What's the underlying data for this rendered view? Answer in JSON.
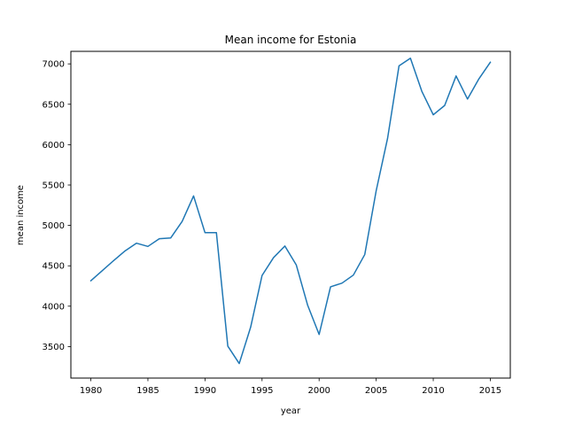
{
  "chart_data": {
    "type": "line",
    "title": "Mean income for Estonia",
    "xlabel": "year",
    "ylabel": "mean income",
    "xlim": [
      1978.25,
      2016.75
    ],
    "ylim": [
      3110,
      7155
    ],
    "xticks": [
      1980,
      1985,
      1990,
      1995,
      2000,
      2005,
      2010,
      2015
    ],
    "xtick_labels": [
      "1980",
      "1985",
      "1990",
      "1995",
      "2000",
      "2005",
      "2010",
      "2015"
    ],
    "yticks": [
      3500,
      4000,
      4500,
      5000,
      5500,
      6000,
      6500,
      7000
    ],
    "ytick_labels": [
      "3500",
      "4000",
      "4500",
      "5000",
      "5500",
      "6000",
      "6500",
      "7000"
    ],
    "grid": false,
    "series": [
      {
        "color": "#1f77b4",
        "x": [
          1980,
          1981,
          1982,
          1983,
          1984,
          1985,
          1986,
          1987,
          1988,
          1989,
          1990,
          1991,
          1992,
          1993,
          1994,
          1995,
          1996,
          1997,
          1998,
          1999,
          2000,
          2001,
          2002,
          2003,
          2004,
          2005,
          2006,
          2007,
          2008,
          2009,
          2010,
          2011,
          2012,
          2013,
          2014,
          2015
        ],
        "y": [
          4315,
          4440,
          4565,
          4685,
          4780,
          4740,
          4835,
          4845,
          5050,
          5365,
          4910,
          4910,
          3505,
          3290,
          3740,
          4380,
          4600,
          4745,
          4510,
          4010,
          3650,
          4240,
          4285,
          4385,
          4640,
          5430,
          6080,
          6975,
          7070,
          6660,
          6370,
          6485,
          6850,
          6565,
          6815,
          7020
        ]
      }
    ]
  }
}
